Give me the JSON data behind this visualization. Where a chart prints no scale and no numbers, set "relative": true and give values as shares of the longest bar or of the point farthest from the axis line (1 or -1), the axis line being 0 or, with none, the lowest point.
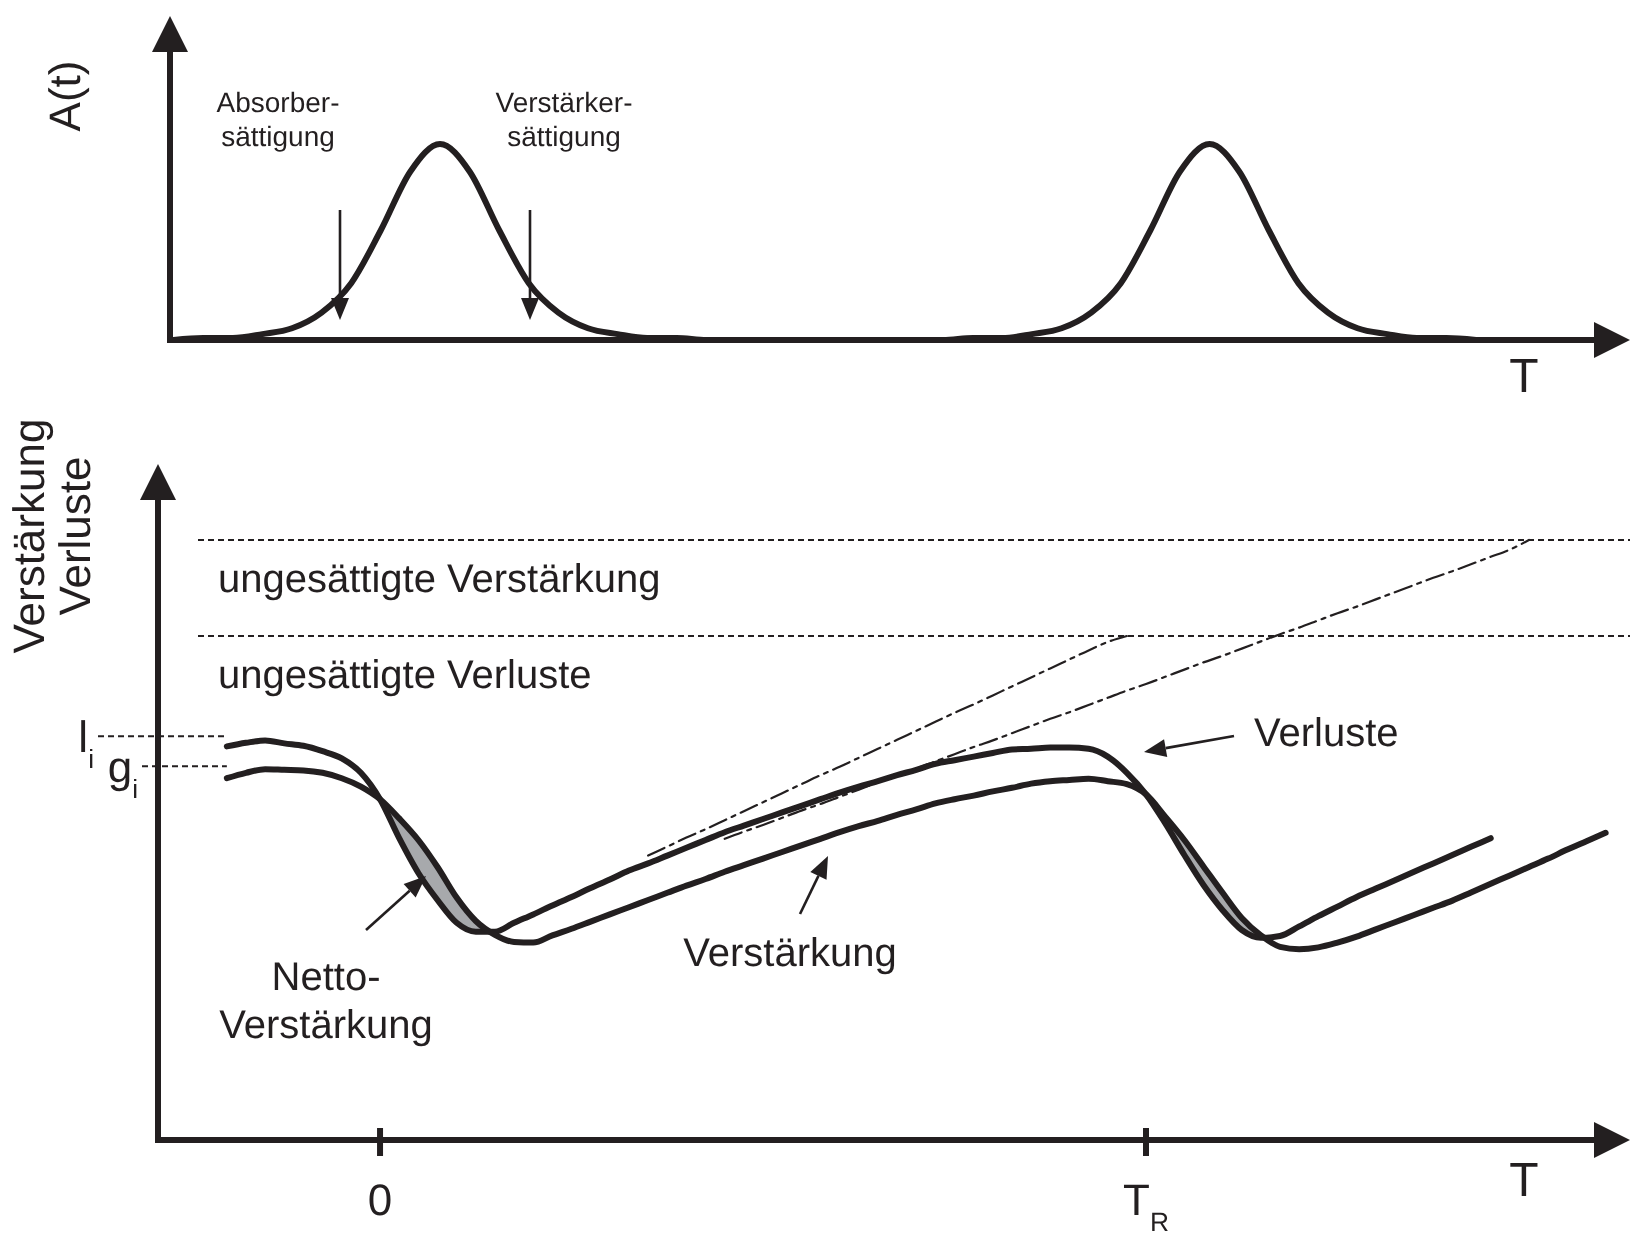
{
  "chart_data": [
    {
      "type": "line",
      "relative": true,
      "ylabel": "A(t)",
      "xlabel": "T",
      "categories": [
        null,
        null,
        null,
        null,
        null,
        null,
        null,
        null,
        null,
        null,
        null,
        null,
        null,
        null,
        null,
        null,
        null,
        null,
        null,
        null,
        null,
        null,
        null,
        null,
        null,
        null,
        null,
        null,
        null,
        null,
        null,
        null,
        null,
        null,
        null,
        null,
        null,
        null,
        null,
        null,
        null,
        null,
        null,
        null,
        null,
        null,
        null,
        null,
        null
      ],
      "series": [
        {
          "color": "#231f20",
          "values": [
            0,
            0.01,
            0.01,
            0.03,
            0.06,
            0.14,
            0.29,
            0.56,
            0.86,
            1,
            0.86,
            0.56,
            0.29,
            0.14,
            0.06,
            0.03,
            0.01,
            0.01,
            0,
            0,
            0,
            0,
            0,
            0,
            0,
            0,
            0,
            0.01,
            0.01,
            0.03,
            0.06,
            0.14,
            0.29,
            0.56,
            0.86,
            1,
            0.86,
            0.56,
            0.29,
            0.14,
            0.06,
            0.03,
            0.01,
            0.01,
            0,
            null,
            null,
            null,
            null
          ]
        }
      ],
      "annotations": [
        "Absorber-\nsättigung",
        "Verstärker-\nsättigung"
      ]
    },
    {
      "type": "line",
      "relative": true,
      "ylabel": "Verstärkung\nVerluste",
      "xlabel": "T",
      "categories": [
        null,
        null,
        null,
        null,
        null,
        null,
        null,
        null,
        null,
        null,
        null,
        "0",
        null,
        null,
        null,
        null,
        null,
        null,
        null,
        null,
        null,
        null,
        null,
        null,
        null,
        null,
        null,
        null,
        null,
        null,
        null,
        null,
        null,
        null,
        null,
        null,
        null,
        null,
        null,
        null,
        null,
        null,
        null,
        null,
        null,
        null,
        null,
        null,
        null,
        null,
        null,
        "T$_{R}$",
        null,
        null,
        null,
        null,
        null,
        null,
        null,
        null,
        null,
        null,
        null,
        null,
        null,
        null,
        null,
        null,
        null,
        null,
        null,
        null,
        null,
        null,
        null,
        null
      ],
      "series": [
        {
          "name": "Verluste",
          "color": "#231f20",
          "line_style": "solid",
          "values": [
            null,
            null,
            null,
            0.656,
            0.662,
            0.666,
            0.661,
            0.657,
            0.648,
            0.636,
            0.612,
            0.568,
            0.503,
            0.445,
            0.4,
            0.362,
            0.347,
            0.347,
            0.362,
            0.376,
            0.391,
            0.405,
            0.42,
            0.434,
            0.449,
            0.461,
            0.474,
            0.487,
            0.5,
            0.513,
            0.524,
            0.535,
            0.546,
            0.557,
            0.568,
            0.579,
            0.589,
            0.598,
            0.608,
            0.617,
            0.627,
            0.633,
            0.639,
            0.645,
            0.651,
            0.652,
            0.654,
            0.654,
            0.652,
            0.639,
            0.612,
            0.576,
            0.528,
            0.475,
            0.425,
            0.383,
            0.35,
            0.337,
            0.34,
            0.356,
            0.373,
            0.389,
            0.405,
            0.419,
            0.433,
            0.447,
            0.461,
            0.475,
            0.489,
            0.503,
            null,
            null,
            null,
            null,
            null,
            null
          ]
        },
        {
          "name": "Verstärkung",
          "color": "#231f20",
          "line_style": "solid",
          "values": [
            null,
            null,
            null,
            0.603,
            0.612,
            0.618,
            0.617,
            0.616,
            0.612,
            0.603,
            0.589,
            0.568,
            0.536,
            0.5,
            0.455,
            0.404,
            0.365,
            0.342,
            0.33,
            0.329,
            0.341,
            0.352,
            0.364,
            0.376,
            0.388,
            0.4,
            0.412,
            0.424,
            0.435,
            0.447,
            0.458,
            0.469,
            0.48,
            0.491,
            0.502,
            0.513,
            0.523,
            0.532,
            0.542,
            0.551,
            0.561,
            0.568,
            0.574,
            0.581,
            0.587,
            0.594,
            0.598,
            0.6,
            0.602,
            0.598,
            0.593,
            0.576,
            0.539,
            0.5,
            0.456,
            0.412,
            0.37,
            0.341,
            0.322,
            0.318,
            0.321,
            0.329,
            0.339,
            0.351,
            0.363,
            0.375,
            0.387,
            0.399,
            0.413,
            0.427,
            0.441,
            0.455,
            0.469,
            0.484,
            0.498,
            0.512
          ],
          "upper": [
            null,
            null,
            null,
            null,
            null,
            null,
            null,
            null,
            null,
            null,
            null,
            0.568,
            0.536,
            0.5,
            0.455,
            0.404,
            0.365,
            0.342,
            null,
            null,
            null,
            null,
            null,
            null,
            null,
            null,
            null,
            null,
            null,
            null,
            null,
            null,
            null,
            null,
            null,
            null,
            null,
            null,
            null,
            null,
            null,
            null,
            null,
            null,
            null,
            null,
            null,
            null,
            null,
            null,
            null,
            0.576,
            0.539,
            0.5,
            0.456,
            0.412,
            0.37,
            0.341,
            null,
            null,
            null,
            null,
            null,
            null,
            null,
            null,
            null,
            null,
            null,
            null,
            null,
            null,
            null,
            null,
            null,
            null
          ],
          "lower": [
            null,
            null,
            null,
            null,
            null,
            null,
            null,
            null,
            null,
            null,
            null,
            0.568,
            0.503,
            0.445,
            0.4,
            0.362,
            0.347,
            0.342,
            null,
            null,
            null,
            null,
            null,
            null,
            null,
            null,
            null,
            null,
            null,
            null,
            null,
            null,
            null,
            null,
            null,
            null,
            null,
            null,
            null,
            null,
            null,
            null,
            null,
            null,
            null,
            null,
            null,
            null,
            null,
            null,
            null,
            0.576,
            0.528,
            0.475,
            0.425,
            0.383,
            0.35,
            0.337,
            null,
            null,
            null,
            null,
            null,
            null,
            null,
            null,
            null,
            null,
            null,
            null,
            null,
            null,
            null,
            null,
            null,
            null
          ]
        },
        {
          "color": "#231f20",
          "line_style": "dashed",
          "values": [
            null,
            null,
            null,
            null,
            null,
            null,
            null,
            null,
            null,
            null,
            null,
            null,
            null,
            null,
            null,
            null,
            null,
            null,
            null,
            null,
            null,
            null,
            null,
            null,
            null,
            0.474,
            0.489,
            0.504,
            0.518,
            0.533,
            0.548,
            0.563,
            0.578,
            0.593,
            0.608,
            0.622,
            0.637,
            0.652,
            0.667,
            0.682,
            0.697,
            0.712,
            0.726,
            0.741,
            0.756,
            0.771,
            0.786,
            0.801,
            0.816,
            0.83,
            0.84,
            null,
            null,
            null,
            null,
            null,
            null,
            null,
            null,
            null,
            null,
            null,
            null,
            null,
            null,
            null,
            null,
            null,
            null,
            null,
            null,
            null,
            null,
            null,
            null,
            null
          ]
        },
        {
          "color": "#231f20",
          "line_style": "dashed",
          "values": [
            null,
            null,
            null,
            null,
            null,
            null,
            null,
            null,
            null,
            null,
            null,
            null,
            null,
            null,
            null,
            null,
            null,
            null,
            null,
            null,
            null,
            null,
            null,
            null,
            null,
            null,
            null,
            null,
            null,
            0.502,
            0.514,
            0.525,
            0.537,
            0.549,
            0.56,
            0.572,
            0.584,
            0.596,
            0.608,
            0.619,
            0.631,
            0.643,
            0.655,
            0.666,
            0.678,
            0.69,
            0.702,
            0.713,
            0.725,
            0.737,
            0.749,
            0.76,
            0.772,
            0.784,
            0.796,
            0.807,
            0.819,
            0.831,
            0.843,
            0.854,
            0.866,
            0.878,
            0.889,
            0.901,
            0.913,
            0.925,
            0.937,
            0.948,
            0.96,
            0.972,
            0.984,
            1,
            null,
            null,
            null,
            null
          ]
        }
      ],
      "ref_lines": [
        {
          "axis": "y",
          "value": 1,
          "label": "ungesättigte Verstärkung",
          "line_style": "dotted"
        },
        {
          "axis": "y",
          "value": 0.84,
          "label": "ungesättigte Verluste",
          "line_style": "dotted"
        },
        {
          "axis": "y",
          "value": 0.673,
          "label": "l$_{i}$",
          "line_style": "dotted"
        },
        {
          "axis": "y",
          "value": 0.623,
          "label": "g$_{i}$",
          "line_style": "dotted"
        }
      ],
      "annotations": [
        "Netto-\nVerstärkung"
      ]
    }
  ]
}
